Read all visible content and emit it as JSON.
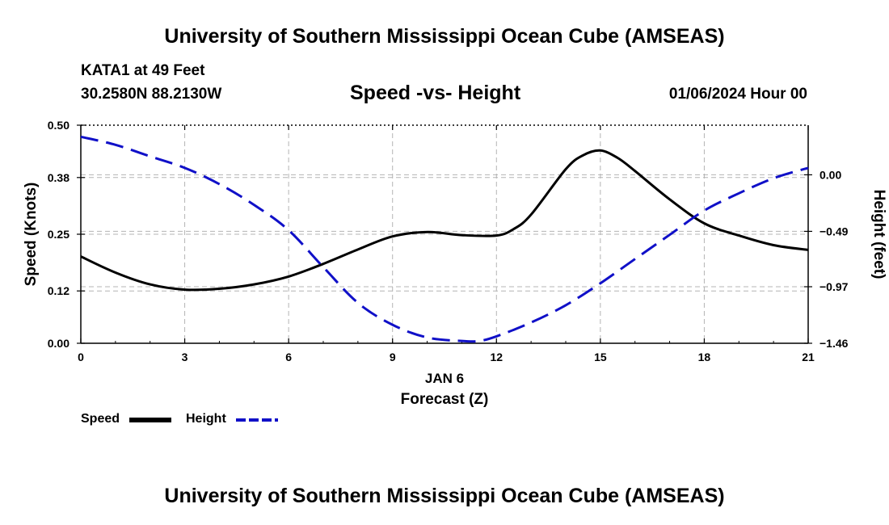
{
  "header": {
    "top_title": "University of Southern Mississippi Ocean Cube (AMSEAS)",
    "station_name": "KATA1 at 49 Feet",
    "station_coords": "30.2580N  88.2130W",
    "chart_title": "Speed -vs- Height",
    "date_label": "01/06/2024 Hour 00",
    "bottom_title": "University of Southern Mississippi Ocean Cube (AMSEAS)"
  },
  "legend": {
    "speed_label": "Speed",
    "height_label": "Height"
  },
  "colors": {
    "speed": "#000000",
    "height": "#1010c8",
    "grid": "#b4b4b4"
  },
  "chart_data": {
    "type": "line",
    "title": "Speed -vs- Height",
    "xlabel": "Forecast (Z)",
    "x_sublabel": "JAN 6",
    "ylabel_left": "Speed (Knots)",
    "ylabel_right": "Height (feet)",
    "xlim": [
      0,
      21
    ],
    "ylim_left": [
      0,
      0.5
    ],
    "ylim_right": [
      -1.46,
      0.43
    ],
    "x_ticks": [
      0,
      3,
      6,
      9,
      12,
      15,
      18,
      21
    ],
    "x_tick_labels": [
      "0",
      "3",
      "6",
      "9",
      "12",
      "15",
      "18",
      "21"
    ],
    "y_left_ticks": [
      0.0,
      0.12,
      0.25,
      0.38,
      0.5
    ],
    "y_left_tick_labels": [
      "0.00",
      "0.12",
      "0.25",
      "0.38",
      "0.50"
    ],
    "y_right_ticks": [
      -1.46,
      -0.97,
      -0.49,
      0.0
    ],
    "y_right_tick_labels": [
      "−1.46",
      "−0.97",
      "−0.49",
      "0.00"
    ],
    "grid": true,
    "series": [
      {
        "name": "Speed",
        "axis": "left",
        "style": "solid",
        "x": [
          0,
          1,
          2,
          3,
          4,
          5,
          6,
          7,
          8,
          9,
          10,
          11,
          12,
          12.5,
          13,
          14,
          14.5,
          15,
          15.5,
          16,
          17,
          18,
          19,
          20,
          21
        ],
        "values": [
          0.199,
          0.162,
          0.135,
          0.123,
          0.125,
          0.135,
          0.153,
          0.182,
          0.215,
          0.245,
          0.255,
          0.248,
          0.247,
          0.262,
          0.295,
          0.399,
          0.431,
          0.442,
          0.425,
          0.395,
          0.33,
          0.275,
          0.247,
          0.225,
          0.214
        ]
      },
      {
        "name": "Height",
        "axis": "right",
        "style": "dashed",
        "x": [
          0,
          1,
          2,
          3,
          4,
          5,
          6,
          7,
          8,
          9,
          10,
          11,
          11.5,
          12,
          13,
          14,
          15,
          16,
          17,
          18,
          19,
          20,
          21
        ],
        "values": [
          0.33,
          0.26,
          0.16,
          0.06,
          -0.08,
          -0.26,
          -0.48,
          -0.8,
          -1.11,
          -1.3,
          -1.41,
          -1.44,
          -1.44,
          -1.4,
          -1.28,
          -1.13,
          -0.94,
          -0.73,
          -0.52,
          -0.31,
          -0.16,
          -0.03,
          0.06
        ]
      }
    ]
  }
}
